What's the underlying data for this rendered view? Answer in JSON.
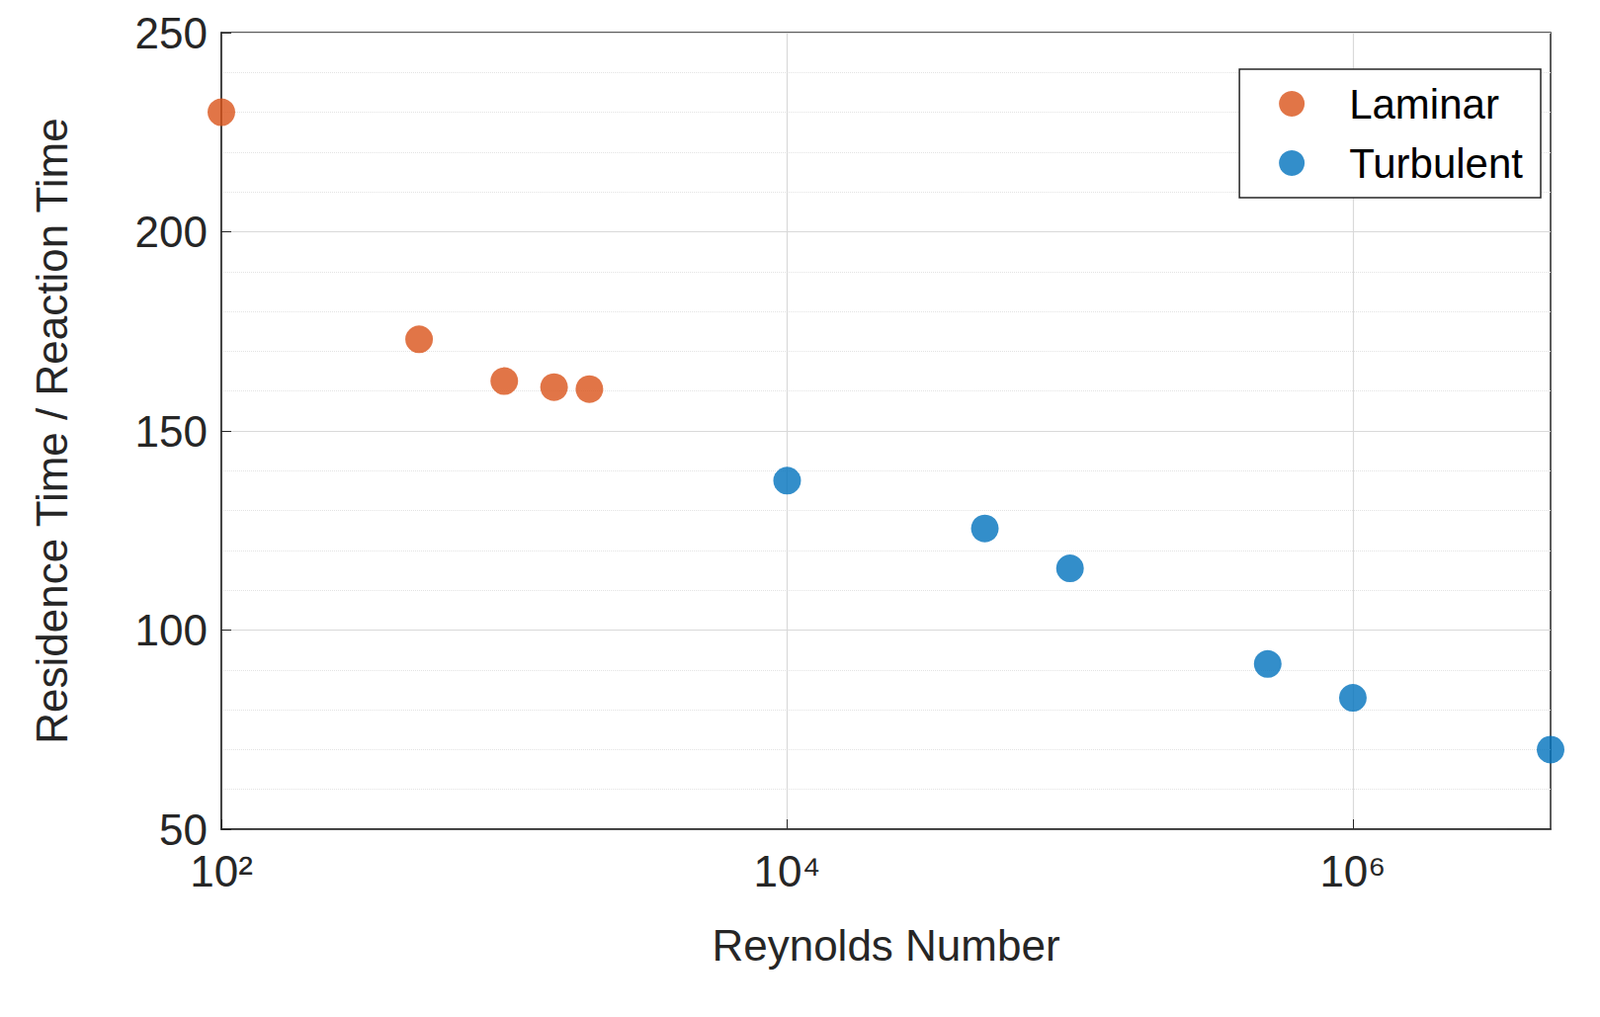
{
  "chart_data": {
    "type": "scatter",
    "x_label": "Reynolds Number",
    "y_label": "Residence Time / Reaction Time",
    "log": "x",
    "grid": true,
    "legend": "upper right",
    "xlim": [
      100,
      5000000
    ],
    "xticks": [
      {
        "value": 100,
        "label": "10²"
      },
      {
        "value": 10000,
        "label": "10⁴"
      },
      {
        "value": 1000000,
        "label": "10⁶"
      }
    ],
    "ylim": [
      50,
      250
    ],
    "yticks": [
      50,
      100,
      150,
      200,
      250
    ],
    "series": [
      {
        "name": "Laminar",
        "color": "#D95319",
        "marker": "circle",
        "x": [
          100,
          500,
          1000,
          1500,
          2000
        ],
        "values": [
          230,
          173,
          162.5,
          161,
          160.5
        ]
      },
      {
        "name": "Turbulent",
        "color": "#0072BD",
        "marker": "circle",
        "x": [
          10000,
          50000,
          100000,
          500000,
          1000000,
          5000000
        ],
        "values": [
          137.5,
          125.5,
          115.5,
          91.5,
          83,
          70
        ]
      }
    ]
  }
}
